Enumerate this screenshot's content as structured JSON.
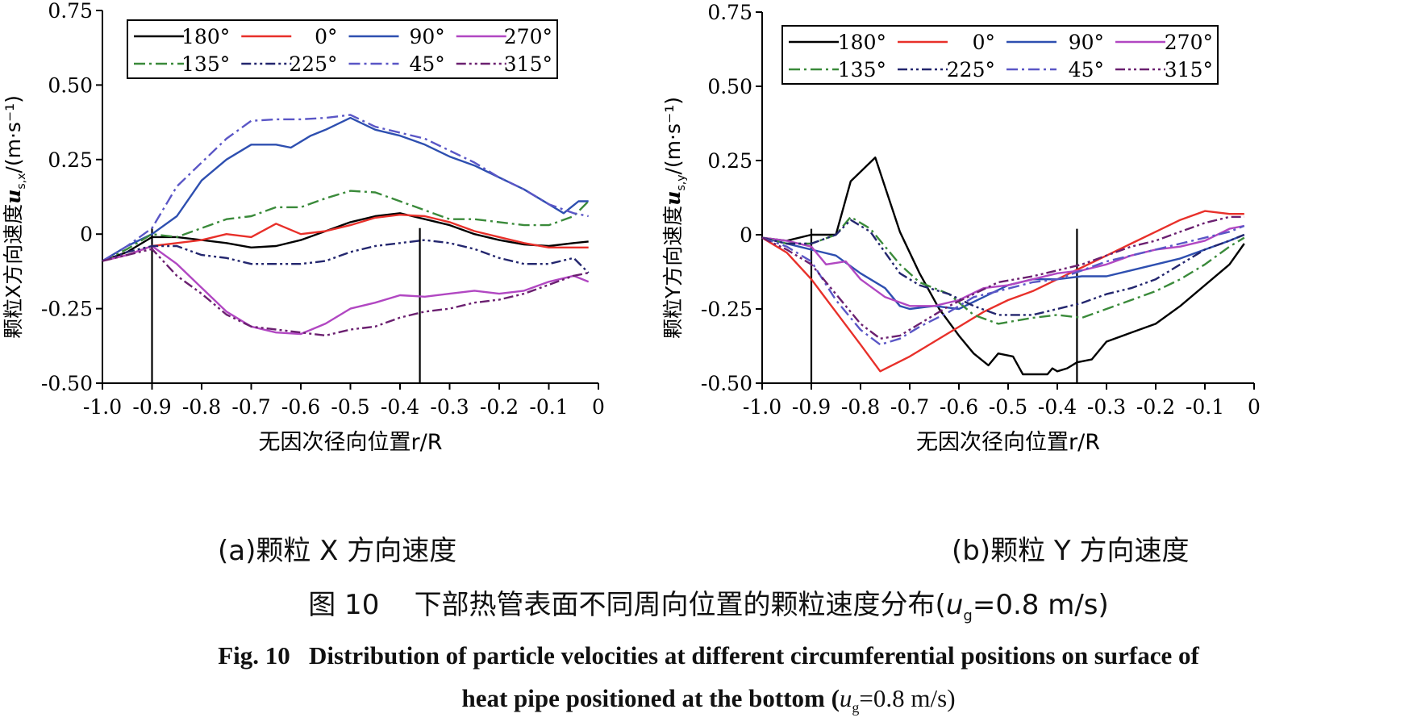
{
  "figure": {
    "caption_zh_prefix": "图 10",
    "caption_zh_text": "下部热管表面不同周向位置的颗粒速度分布(",
    "caption_zh_param": "u",
    "caption_zh_sub": "g",
    "caption_zh_value": "=0.8 m/s)",
    "caption_en_prefix": "Fig. 10",
    "caption_en_line1": "Distribution of particle velocities at different circumferential positions on surface of",
    "caption_en_line2_text": "heat pipe positioned at the bottom (",
    "caption_en_param": "u",
    "caption_en_sub": "g",
    "caption_en_value": "=0.8 m/s)"
  },
  "chart_data": [
    {
      "type": "line",
      "panel_label": "(a)颗粒 X 方向速度",
      "xlabel": "无因次径向位置r/R",
      "ylabel_prefix": "颗粒X方向速度",
      "ylabel_symbol": "u",
      "ylabel_sub": "s,x",
      "ylabel_unit": "/(m·s⁻¹)",
      "xlim": [
        -1.0,
        0
      ],
      "ylim": [
        -0.5,
        0.75
      ],
      "xticks": [
        -1.0,
        -0.9,
        -0.8,
        -0.7,
        -0.6,
        -0.5,
        -0.4,
        -0.3,
        -0.2,
        -0.1,
        0
      ],
      "xtick_labels": [
        "-1.0",
        "-0.9",
        "-0.8",
        "-0.7",
        "-0.6",
        "-0.5",
        "-0.4",
        "-0.3",
        "-0.2",
        "-0.1",
        "0"
      ],
      "yticks": [
        -0.5,
        -0.25,
        0,
        0.25,
        0.5,
        0.75
      ],
      "ytick_labels": [
        "-0.50",
        "-0.25",
        "0",
        "0.25",
        "0.50",
        "0.75"
      ],
      "vlines": [
        -0.9,
        -0.36
      ],
      "legend_position": "top",
      "series": [
        {
          "name": "180°",
          "color": "#000000",
          "dash": "solid",
          "x": [
            -1.0,
            -0.95,
            -0.9,
            -0.85,
            -0.8,
            -0.75,
            -0.7,
            -0.65,
            -0.6,
            -0.55,
            -0.5,
            -0.45,
            -0.4,
            -0.35,
            -0.3,
            -0.25,
            -0.2,
            -0.15,
            -0.1,
            -0.05,
            -0.02
          ],
          "y": [
            -0.09,
            -0.06,
            -0.01,
            -0.01,
            -0.02,
            -0.03,
            -0.045,
            -0.04,
            -0.02,
            0.01,
            0.04,
            0.06,
            0.07,
            0.05,
            0.03,
            0.0,
            -0.02,
            -0.035,
            -0.04,
            -0.03,
            -0.025
          ]
        },
        {
          "name": "0°",
          "color": "#e8302a",
          "dash": "solid",
          "x": [
            -1.0,
            -0.95,
            -0.9,
            -0.85,
            -0.8,
            -0.75,
            -0.7,
            -0.65,
            -0.6,
            -0.55,
            -0.5,
            -0.45,
            -0.4,
            -0.35,
            -0.3,
            -0.25,
            -0.2,
            -0.15,
            -0.1,
            -0.05,
            -0.02
          ],
          "y": [
            -0.09,
            -0.07,
            -0.04,
            -0.03,
            -0.02,
            0.0,
            -0.01,
            0.035,
            0.0,
            0.01,
            0.03,
            0.055,
            0.065,
            0.06,
            0.04,
            0.01,
            -0.01,
            -0.03,
            -0.045,
            -0.045,
            -0.045
          ]
        },
        {
          "name": "90°",
          "color": "#2e4fb0",
          "dash": "solid",
          "x": [
            -1.0,
            -0.95,
            -0.9,
            -0.85,
            -0.8,
            -0.75,
            -0.7,
            -0.65,
            -0.62,
            -0.58,
            -0.55,
            -0.5,
            -0.45,
            -0.4,
            -0.35,
            -0.3,
            -0.25,
            -0.2,
            -0.15,
            -0.1,
            -0.07,
            -0.04,
            -0.02
          ],
          "y": [
            -0.09,
            -0.04,
            0.0,
            0.06,
            0.18,
            0.25,
            0.3,
            0.3,
            0.29,
            0.33,
            0.35,
            0.39,
            0.35,
            0.33,
            0.3,
            0.26,
            0.23,
            0.19,
            0.15,
            0.1,
            0.07,
            0.11,
            0.11
          ]
        },
        {
          "name": "270°",
          "color": "#b147c2",
          "dash": "solid",
          "x": [
            -1.0,
            -0.95,
            -0.9,
            -0.85,
            -0.8,
            -0.75,
            -0.7,
            -0.65,
            -0.6,
            -0.55,
            -0.5,
            -0.45,
            -0.4,
            -0.35,
            -0.3,
            -0.25,
            -0.2,
            -0.15,
            -0.1,
            -0.05,
            -0.02
          ],
          "y": [
            -0.09,
            -0.07,
            -0.04,
            -0.1,
            -0.18,
            -0.26,
            -0.31,
            -0.33,
            -0.335,
            -0.3,
            -0.25,
            -0.23,
            -0.205,
            -0.21,
            -0.2,
            -0.19,
            -0.2,
            -0.19,
            -0.16,
            -0.14,
            -0.16
          ]
        },
        {
          "name": "135°",
          "color": "#3a8a3a",
          "dash": "dashdot",
          "x": [
            -1.0,
            -0.95,
            -0.9,
            -0.85,
            -0.8,
            -0.75,
            -0.7,
            -0.65,
            -0.6,
            -0.55,
            -0.5,
            -0.45,
            -0.4,
            -0.35,
            -0.3,
            -0.25,
            -0.2,
            -0.15,
            -0.1,
            -0.05,
            -0.02
          ],
          "y": [
            -0.09,
            -0.05,
            0.0,
            -0.01,
            0.02,
            0.05,
            0.06,
            0.09,
            0.09,
            0.12,
            0.145,
            0.14,
            0.11,
            0.08,
            0.05,
            0.05,
            0.04,
            0.03,
            0.03,
            0.06,
            0.11
          ]
        },
        {
          "name": "225°",
          "color": "#23266e",
          "dash": "dashdotdot",
          "x": [
            -1.0,
            -0.95,
            -0.9,
            -0.85,
            -0.8,
            -0.75,
            -0.7,
            -0.65,
            -0.6,
            -0.55,
            -0.5,
            -0.45,
            -0.4,
            -0.35,
            -0.3,
            -0.25,
            -0.2,
            -0.15,
            -0.1,
            -0.05,
            -0.02
          ],
          "y": [
            -0.09,
            -0.06,
            -0.04,
            -0.04,
            -0.07,
            -0.08,
            -0.1,
            -0.1,
            -0.1,
            -0.09,
            -0.06,
            -0.04,
            -0.03,
            -0.02,
            -0.03,
            -0.05,
            -0.08,
            -0.1,
            -0.1,
            -0.08,
            -0.13
          ]
        },
        {
          "name": "45°",
          "color": "#5a56c6",
          "dash": "dashdot",
          "x": [
            -1.0,
            -0.95,
            -0.9,
            -0.85,
            -0.8,
            -0.75,
            -0.7,
            -0.65,
            -0.6,
            -0.55,
            -0.5,
            -0.45,
            -0.4,
            -0.35,
            -0.3,
            -0.25,
            -0.2,
            -0.15,
            -0.1,
            -0.05,
            -0.02
          ],
          "y": [
            -0.09,
            -0.04,
            0.02,
            0.16,
            0.24,
            0.32,
            0.38,
            0.385,
            0.385,
            0.39,
            0.4,
            0.36,
            0.34,
            0.32,
            0.28,
            0.24,
            0.19,
            0.15,
            0.1,
            0.07,
            0.06
          ]
        },
        {
          "name": "315°",
          "color": "#6b2070",
          "dash": "dashdotdot",
          "x": [
            -1.0,
            -0.95,
            -0.9,
            -0.85,
            -0.8,
            -0.75,
            -0.7,
            -0.65,
            -0.6,
            -0.55,
            -0.5,
            -0.45,
            -0.4,
            -0.35,
            -0.3,
            -0.25,
            -0.2,
            -0.15,
            -0.1,
            -0.05,
            -0.02
          ],
          "y": [
            -0.09,
            -0.07,
            -0.05,
            -0.14,
            -0.2,
            -0.27,
            -0.31,
            -0.32,
            -0.33,
            -0.34,
            -0.32,
            -0.31,
            -0.28,
            -0.26,
            -0.25,
            -0.23,
            -0.22,
            -0.2,
            -0.17,
            -0.14,
            -0.13
          ]
        }
      ]
    },
    {
      "type": "line",
      "panel_label": "(b)颗粒 Y 方向速度",
      "xlabel": "无因次径向位置r/R",
      "ylabel_prefix": "颗粒Y方向速度",
      "ylabel_symbol": "u",
      "ylabel_sub": "s,y",
      "ylabel_unit": "/(m·s⁻¹)",
      "xlim": [
        -1.0,
        0
      ],
      "ylim": [
        -0.5,
        0.75
      ],
      "xticks": [
        -1.0,
        -0.9,
        -0.8,
        -0.7,
        -0.6,
        -0.5,
        -0.4,
        -0.3,
        -0.2,
        -0.1,
        0
      ],
      "xtick_labels": [
        "-1.0",
        "-0.9",
        "-0.8",
        "-0.7",
        "-0.6",
        "-0.5",
        "-0.4",
        "-0.3",
        "-0.2",
        "-0.1",
        "0"
      ],
      "yticks": [
        -0.5,
        -0.25,
        0,
        0.25,
        0.5,
        0.75
      ],
      "ytick_labels": [
        "-0.50",
        "-0.25",
        "0",
        "0.25",
        "0.50",
        "0.75"
      ],
      "vlines": [
        -0.9,
        -0.36
      ],
      "legend_position": "top",
      "series": [
        {
          "name": "180°",
          "color": "#000000",
          "dash": "solid",
          "x": [
            -1.0,
            -0.95,
            -0.9,
            -0.88,
            -0.85,
            -0.82,
            -0.77,
            -0.72,
            -0.68,
            -0.64,
            -0.6,
            -0.57,
            -0.54,
            -0.52,
            -0.49,
            -0.47,
            -0.45,
            -0.42,
            -0.41,
            -0.4,
            -0.38,
            -0.36,
            -0.33,
            -0.3,
            -0.25,
            -0.2,
            -0.15,
            -0.1,
            -0.05,
            -0.02
          ],
          "y": [
            -0.01,
            -0.02,
            0.0,
            0.0,
            0.0,
            0.18,
            0.26,
            0.01,
            -0.13,
            -0.25,
            -0.34,
            -0.4,
            -0.44,
            -0.4,
            -0.41,
            -0.47,
            -0.47,
            -0.47,
            -0.45,
            -0.46,
            -0.45,
            -0.43,
            -0.42,
            -0.36,
            -0.33,
            -0.3,
            -0.24,
            -0.17,
            -0.1,
            -0.03
          ]
        },
        {
          "name": "0°",
          "color": "#e8302a",
          "dash": "solid",
          "x": [
            -1.0,
            -0.95,
            -0.9,
            -0.85,
            -0.8,
            -0.76,
            -0.7,
            -0.65,
            -0.6,
            -0.55,
            -0.5,
            -0.45,
            -0.4,
            -0.35,
            -0.3,
            -0.25,
            -0.2,
            -0.15,
            -0.1,
            -0.05,
            -0.02
          ],
          "y": [
            -0.01,
            -0.06,
            -0.15,
            -0.26,
            -0.37,
            -0.46,
            -0.41,
            -0.36,
            -0.31,
            -0.26,
            -0.22,
            -0.19,
            -0.15,
            -0.11,
            -0.07,
            -0.03,
            0.01,
            0.05,
            0.08,
            0.07,
            0.07
          ]
        },
        {
          "name": "90°",
          "color": "#2e4fb0",
          "dash": "solid",
          "x": [
            -1.0,
            -0.95,
            -0.9,
            -0.85,
            -0.8,
            -0.75,
            -0.72,
            -0.7,
            -0.65,
            -0.6,
            -0.55,
            -0.5,
            -0.45,
            -0.4,
            -0.35,
            -0.3,
            -0.25,
            -0.2,
            -0.15,
            -0.1,
            -0.05,
            -0.02
          ],
          "y": [
            -0.01,
            -0.03,
            -0.05,
            -0.07,
            -0.13,
            -0.18,
            -0.24,
            -0.25,
            -0.24,
            -0.25,
            -0.21,
            -0.17,
            -0.15,
            -0.15,
            -0.14,
            -0.14,
            -0.12,
            -0.1,
            -0.08,
            -0.05,
            -0.02,
            0.0
          ]
        },
        {
          "name": "270°",
          "color": "#b147c2",
          "dash": "solid",
          "x": [
            -1.0,
            -0.95,
            -0.9,
            -0.87,
            -0.83,
            -0.8,
            -0.75,
            -0.7,
            -0.65,
            -0.6,
            -0.55,
            -0.5,
            -0.45,
            -0.4,
            -0.35,
            -0.3,
            -0.25,
            -0.2,
            -0.15,
            -0.1,
            -0.05,
            -0.02
          ],
          "y": [
            -0.01,
            -0.02,
            -0.04,
            -0.1,
            -0.09,
            -0.15,
            -0.21,
            -0.24,
            -0.24,
            -0.22,
            -0.18,
            -0.17,
            -0.15,
            -0.13,
            -0.12,
            -0.1,
            -0.07,
            -0.05,
            -0.04,
            -0.02,
            0.02,
            0.03
          ]
        },
        {
          "name": "135°",
          "color": "#3a8a3a",
          "dash": "dashdot",
          "x": [
            -1.0,
            -0.95,
            -0.9,
            -0.85,
            -0.82,
            -0.78,
            -0.72,
            -0.68,
            -0.62,
            -0.57,
            -0.52,
            -0.45,
            -0.4,
            -0.35,
            -0.3,
            -0.25,
            -0.2,
            -0.15,
            -0.1,
            -0.05,
            -0.02
          ],
          "y": [
            -0.01,
            -0.03,
            -0.03,
            0.0,
            0.06,
            0.02,
            -0.1,
            -0.16,
            -0.2,
            -0.27,
            -0.3,
            -0.28,
            -0.27,
            -0.28,
            -0.25,
            -0.22,
            -0.19,
            -0.15,
            -0.1,
            -0.04,
            -0.01
          ]
        },
        {
          "name": "225°",
          "color": "#23266e",
          "dash": "dashdotdot",
          "x": [
            -1.0,
            -0.95,
            -0.9,
            -0.85,
            -0.82,
            -0.78,
            -0.72,
            -0.68,
            -0.62,
            -0.57,
            -0.52,
            -0.45,
            -0.4,
            -0.35,
            -0.3,
            -0.25,
            -0.2,
            -0.15,
            -0.1,
            -0.05,
            -0.02
          ],
          "y": [
            -0.01,
            -0.03,
            -0.03,
            0.0,
            0.05,
            0.01,
            -0.13,
            -0.17,
            -0.2,
            -0.24,
            -0.27,
            -0.27,
            -0.25,
            -0.23,
            -0.2,
            -0.18,
            -0.15,
            -0.1,
            -0.05,
            -0.02,
            0.0
          ]
        },
        {
          "name": "45°",
          "color": "#5a56c6",
          "dash": "dashdot",
          "x": [
            -1.0,
            -0.95,
            -0.9,
            -0.85,
            -0.8,
            -0.76,
            -0.72,
            -0.68,
            -0.62,
            -0.57,
            -0.52,
            -0.45,
            -0.4,
            -0.35,
            -0.3,
            -0.25,
            -0.2,
            -0.15,
            -0.1,
            -0.05,
            -0.02
          ],
          "y": [
            -0.01,
            -0.04,
            -0.09,
            -0.22,
            -0.32,
            -0.37,
            -0.35,
            -0.31,
            -0.26,
            -0.21,
            -0.19,
            -0.16,
            -0.15,
            -0.12,
            -0.09,
            -0.07,
            -0.05,
            -0.03,
            -0.01,
            0.01,
            0.03
          ]
        },
        {
          "name": "315°",
          "color": "#6b2070",
          "dash": "dashdotdot",
          "x": [
            -1.0,
            -0.95,
            -0.9,
            -0.85,
            -0.8,
            -0.76,
            -0.72,
            -0.68,
            -0.62,
            -0.57,
            -0.52,
            -0.45,
            -0.4,
            -0.35,
            -0.3,
            -0.25,
            -0.2,
            -0.15,
            -0.1,
            -0.05,
            -0.02
          ],
          "y": [
            -0.01,
            -0.05,
            -0.1,
            -0.2,
            -0.3,
            -0.35,
            -0.34,
            -0.3,
            -0.24,
            -0.2,
            -0.16,
            -0.14,
            -0.12,
            -0.1,
            -0.07,
            -0.04,
            -0.02,
            0.01,
            0.04,
            0.06,
            0.06
          ]
        }
      ]
    }
  ]
}
